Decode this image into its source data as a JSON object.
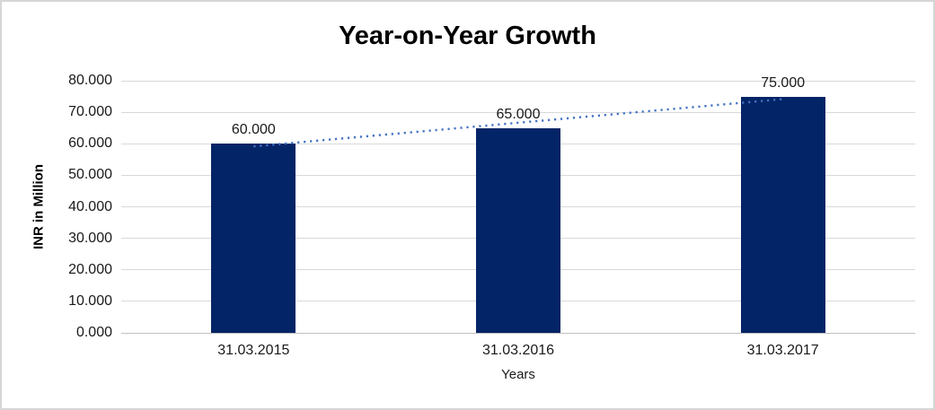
{
  "window": {
    "background_color": "#ffffff",
    "border_color": "#d6d6d6"
  },
  "chart_data": {
    "type": "bar",
    "title": "Year-on-Year Growth",
    "xlabel": "Years",
    "ylabel": "INR in Million",
    "categories": [
      "31.03.2015",
      "31.03.2016",
      "31.03.2017"
    ],
    "values": [
      60,
      65,
      75
    ],
    "value_labels": [
      "60.000",
      "65.000",
      "75.000"
    ],
    "ylim": [
      0,
      80
    ],
    "ytick_values": [
      0,
      10,
      20,
      30,
      40,
      50,
      60,
      70,
      80
    ],
    "ytick_labels": [
      "0.000",
      "10.000",
      "20.000",
      "30.000",
      "40.000",
      "50.000",
      "60.000",
      "70.000",
      "80.000"
    ],
    "grid": true,
    "legend": "none",
    "bar_color": "#032466",
    "gridline_color": "#d9d9d9",
    "axis_line_color": "#bfbfbf",
    "trendline": {
      "fit": "linear",
      "style": "dotted",
      "color": "#4472c4",
      "values_at_categories": [
        59.17,
        66.67,
        74.17
      ]
    }
  }
}
